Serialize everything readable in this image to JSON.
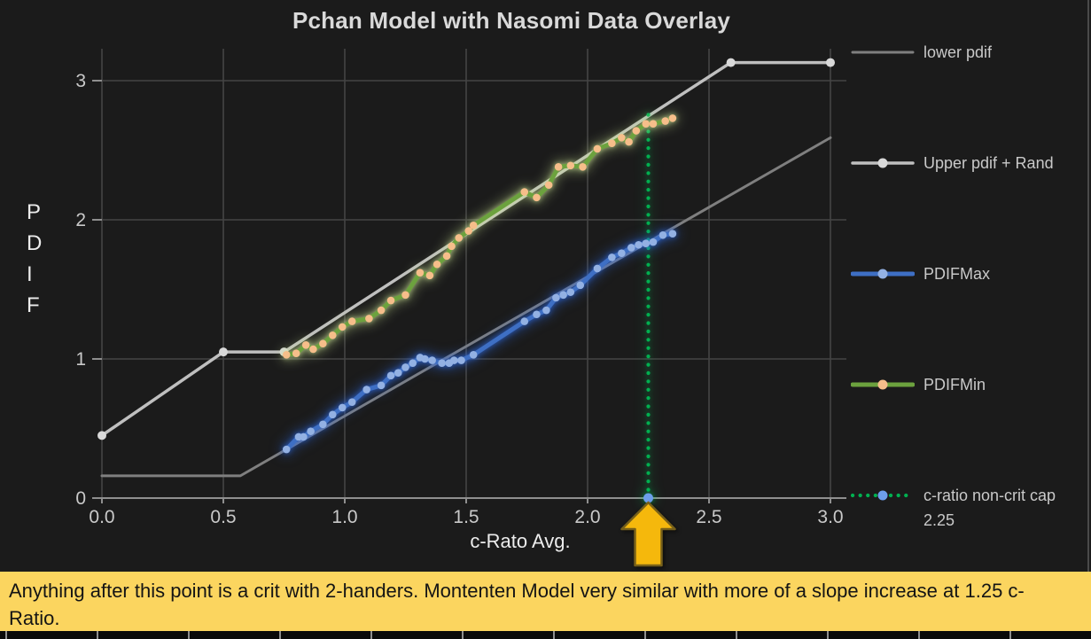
{
  "banner": {
    "text": "Anything after this point is a crit with 2-handers. Montenten Model very similar with more of a slope increase at 1.25 c-Ratio.",
    "background": "#FBD55F",
    "text_color": "#141414"
  },
  "chart_data": {
    "type": "line",
    "title": "Pchan Model with Nasomi Data Overlay",
    "xlabel": "c-Rato Avg.",
    "ylabel": "PDIF",
    "xlim": [
      0.0,
      3.0
    ],
    "ylim": [
      0,
      3.3
    ],
    "grid": true,
    "legend_position": "right",
    "x_ticks": [
      "0.0",
      "0.5",
      "1.0",
      "1.5",
      "2.0",
      "2.5",
      "3.0"
    ],
    "x_tick_values": [
      0,
      0.5,
      1,
      1.5,
      2,
      2.5,
      3
    ],
    "y_ticks": [
      "0",
      "1",
      "2",
      "3"
    ],
    "y_tick_values": [
      0,
      1,
      2,
      3
    ],
    "colors": {
      "background": "#1b1b1b",
      "gridline": "#454545",
      "axis": "#8f8f8f",
      "tick_text": "#c9c9c9",
      "title_text": "#d9d9d9"
    },
    "series": [
      {
        "name": "lower pdif",
        "color": "#7f7f7f",
        "line_width": 3,
        "line_style": "solid",
        "marker_color": null,
        "points": [
          [
            0,
            0.16
          ],
          [
            0.57,
            0.16
          ],
          [
            3.0,
            2.59
          ]
        ]
      },
      {
        "name": "Upper pdif + Rand",
        "color": "#bfbfbf",
        "line_width": 3.5,
        "line_style": "solid",
        "marker_color": "#d9d9d9",
        "marker_size": 5,
        "points": [
          [
            0,
            0.45
          ],
          [
            0.5,
            1.05
          ],
          [
            0.75,
            1.05
          ],
          [
            2.59,
            3.13
          ],
          [
            3.0,
            3.13
          ]
        ]
      },
      {
        "name": "PDIFMax",
        "color": "#3E6FC4",
        "line_width": 5,
        "line_style": "solid",
        "marker_color": "#93B1E3",
        "marker_size": 4.3,
        "glow": "rgba(45,105,225,0.75)",
        "points": [
          [
            0.76,
            0.35
          ],
          [
            0.81,
            0.44
          ],
          [
            0.83,
            0.44
          ],
          [
            0.86,
            0.48
          ],
          [
            0.91,
            0.53
          ],
          [
            0.95,
            0.6
          ],
          [
            0.99,
            0.65
          ],
          [
            1.03,
            0.69
          ],
          [
            1.09,
            0.78
          ],
          [
            1.15,
            0.81
          ],
          [
            1.19,
            0.88
          ],
          [
            1.22,
            0.9
          ],
          [
            1.25,
            0.94
          ],
          [
            1.28,
            0.97
          ],
          [
            1.31,
            1.01
          ],
          [
            1.33,
            1.0
          ],
          [
            1.36,
            0.99
          ],
          [
            1.4,
            0.97
          ],
          [
            1.43,
            0.97
          ],
          [
            1.45,
            0.99
          ],
          [
            1.48,
            0.99
          ],
          [
            1.53,
            1.03
          ],
          [
            1.74,
            1.27
          ],
          [
            1.79,
            1.32
          ],
          [
            1.83,
            1.35
          ],
          [
            1.87,
            1.44
          ],
          [
            1.9,
            1.46
          ],
          [
            1.93,
            1.48
          ],
          [
            1.97,
            1.53
          ],
          [
            2.04,
            1.65
          ],
          [
            2.1,
            1.73
          ],
          [
            2.14,
            1.76
          ],
          [
            2.18,
            1.8
          ],
          [
            2.21,
            1.82
          ],
          [
            2.24,
            1.83
          ],
          [
            2.27,
            1.84
          ],
          [
            2.31,
            1.89
          ],
          [
            2.35,
            1.9
          ]
        ]
      },
      {
        "name": "PDIFMin",
        "color": "#6CA23E",
        "line_width": 5,
        "line_style": "solid",
        "marker_color": "#F6BE8A",
        "marker_size": 4.3,
        "glow": "rgba(205,230,150,0.7)",
        "points": [
          [
            0.76,
            1.03
          ],
          [
            0.8,
            1.04
          ],
          [
            0.84,
            1.1
          ],
          [
            0.87,
            1.07
          ],
          [
            0.91,
            1.11
          ],
          [
            0.95,
            1.17
          ],
          [
            0.99,
            1.23
          ],
          [
            1.03,
            1.27
          ],
          [
            1.1,
            1.29
          ],
          [
            1.15,
            1.35
          ],
          [
            1.19,
            1.42
          ],
          [
            1.25,
            1.46
          ],
          [
            1.31,
            1.62
          ],
          [
            1.35,
            1.6
          ],
          [
            1.38,
            1.68
          ],
          [
            1.42,
            1.74
          ],
          [
            1.44,
            1.81
          ],
          [
            1.47,
            1.87
          ],
          [
            1.51,
            1.92
          ],
          [
            1.53,
            1.96
          ],
          [
            1.74,
            2.2
          ],
          [
            1.79,
            2.16
          ],
          [
            1.84,
            2.25
          ],
          [
            1.88,
            2.38
          ],
          [
            1.93,
            2.39
          ],
          [
            1.98,
            2.38
          ],
          [
            2.04,
            2.51
          ],
          [
            2.1,
            2.55
          ],
          [
            2.14,
            2.59
          ],
          [
            2.17,
            2.56
          ],
          [
            2.2,
            2.64
          ],
          [
            2.24,
            2.69
          ],
          [
            2.27,
            2.69
          ],
          [
            2.32,
            2.71
          ],
          [
            2.35,
            2.73
          ]
        ]
      },
      {
        "name": "c-ratio non-crit cap 2.25",
        "type": "vline",
        "x": 2.25,
        "y_range": [
          0,
          2.78
        ],
        "color": "#00B050",
        "line_width": 4.2,
        "line_style": "dotted",
        "glow": "rgba(0,220,100,0.45)",
        "endpoint_marker": {
          "y": 0,
          "color": "#6D9EEB",
          "size": 5.5
        }
      }
    ],
    "arrow_annotation": {
      "shape": "arrow-up",
      "x": 2.25,
      "fill": "#F5B80C",
      "outline": "#77601a"
    }
  }
}
